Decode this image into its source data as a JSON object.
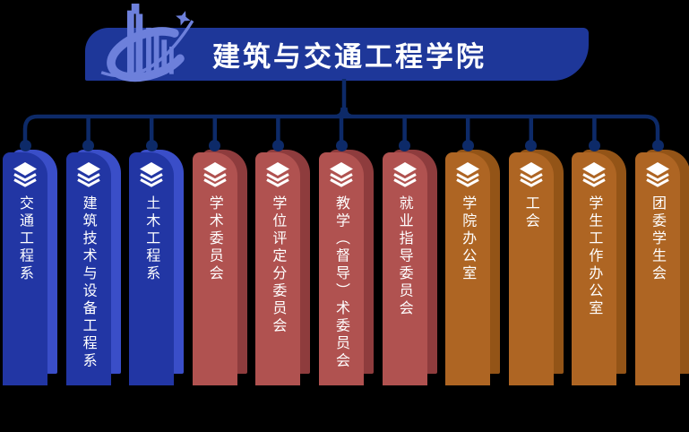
{
  "header": {
    "title": "建筑与交通工程学院"
  },
  "colors": {
    "background": "#000000",
    "banner": "#1e3799",
    "connector": "#0d2a68",
    "logo_primary": "#6d80db",
    "label_text": "#ffffff",
    "groups": {
      "department": {
        "front": "#2236a4",
        "back": "#3a4ec8"
      },
      "committee": {
        "front": "#b05250",
        "back": "#8e3c3d"
      },
      "office": {
        "front": "#ae6523",
        "back": "#935417"
      }
    }
  },
  "org": {
    "root_label": "建筑与交通工程学院",
    "columns": [
      {
        "label": "交通工程系",
        "group": "department"
      },
      {
        "label": "建筑技术与设备工程系",
        "group": "department"
      },
      {
        "label": "土木工程系",
        "group": "department"
      },
      {
        "label": "学术委员会",
        "group": "committee"
      },
      {
        "label": "学位评定分委员会",
        "group": "committee"
      },
      {
        "label": "教学（督导）术委员会",
        "group": "committee"
      },
      {
        "label": "就业指导委员会",
        "group": "committee"
      },
      {
        "label": "学院办公室",
        "group": "office"
      },
      {
        "label": "工会",
        "group": "office"
      },
      {
        "label": "学生工作办公室",
        "group": "office"
      },
      {
        "label": "团委学生会",
        "group": "office"
      }
    ],
    "column_icon": "layers-icon"
  }
}
